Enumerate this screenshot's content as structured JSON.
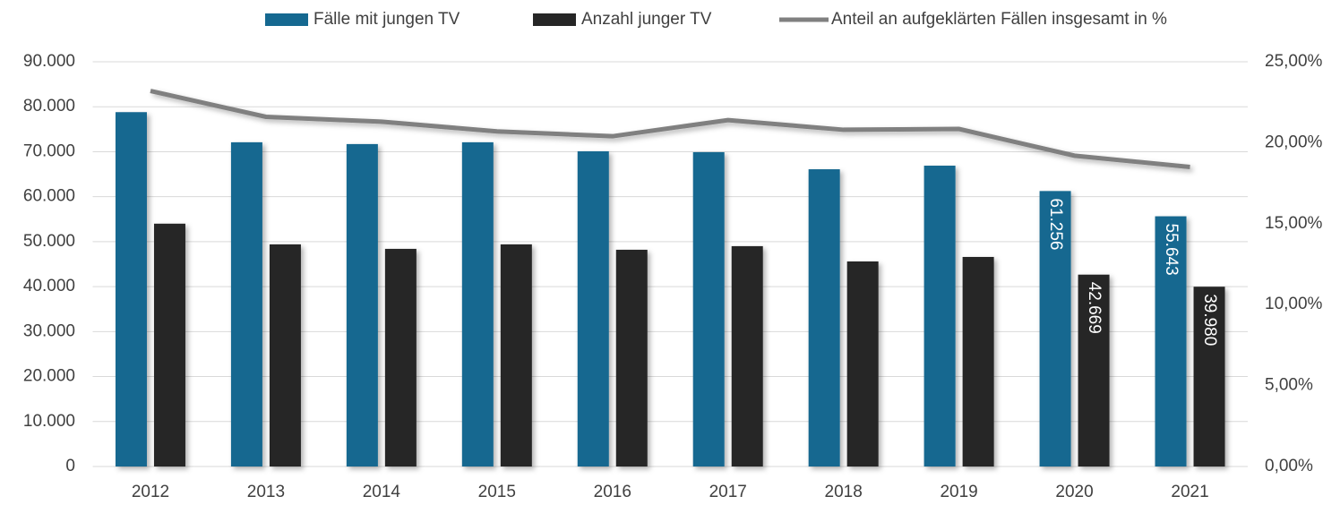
{
  "chart_data": {
    "type": "bar_line",
    "categories": [
      "2012",
      "2013",
      "2014",
      "2015",
      "2016",
      "2017",
      "2018",
      "2019",
      "2020",
      "2021"
    ],
    "series": [
      {
        "name": "Fälle mit jungen TV",
        "color": "#156890",
        "type": "bar",
        "values": [
          78800,
          72100,
          71700,
          72100,
          70100,
          69900,
          66100,
          66900,
          61256,
          55643
        ],
        "value_labels": [
          null,
          null,
          null,
          null,
          null,
          null,
          null,
          null,
          "61.256",
          "55.643"
        ]
      },
      {
        "name": "Anzahl junger TV",
        "color": "#262626",
        "type": "bar",
        "values": [
          54000,
          49400,
          48400,
          49400,
          48200,
          49000,
          45600,
          46600,
          42669,
          39980
        ],
        "value_labels": [
          null,
          null,
          null,
          null,
          null,
          null,
          null,
          null,
          "42.669",
          "39.980"
        ]
      },
      {
        "name": "Anteil an aufgeklärten Fällen insgesamt in %",
        "color": "#808080",
        "type": "line",
        "axis": "y2",
        "values": [
          23.2,
          21.6,
          21.3,
          20.7,
          20.4,
          21.4,
          20.8,
          20.85,
          19.2,
          18.5
        ]
      }
    ],
    "ylim": [
      0,
      90000
    ],
    "yticks": [
      {
        "value": 0,
        "label": "0"
      },
      {
        "value": 10000,
        "label": "10.000"
      },
      {
        "value": 20000,
        "label": "20.000"
      },
      {
        "value": 30000,
        "label": "30.000"
      },
      {
        "value": 40000,
        "label": "40.000"
      },
      {
        "value": 50000,
        "label": "50.000"
      },
      {
        "value": 60000,
        "label": "60.000"
      },
      {
        "value": 70000,
        "label": "70.000"
      },
      {
        "value": 80000,
        "label": "80.000"
      },
      {
        "value": 90000,
        "label": "90.000"
      }
    ],
    "y2lim": [
      0,
      25
    ],
    "y2ticks": [
      {
        "value": 0,
        "label": "0,00%"
      },
      {
        "value": 5,
        "label": "5,00%"
      },
      {
        "value": 10,
        "label": "10,00%"
      },
      {
        "value": 15,
        "label": "15,00%"
      },
      {
        "value": 20,
        "label": "20,00%"
      },
      {
        "value": 25,
        "label": "25,00%"
      }
    ],
    "grid": true,
    "legend": "top"
  }
}
